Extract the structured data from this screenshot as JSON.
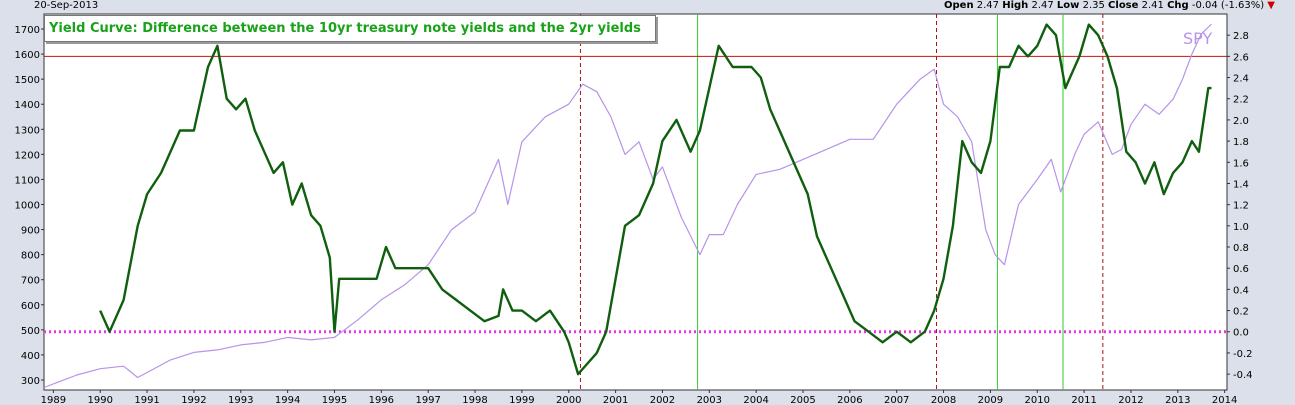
{
  "header": {
    "date": "20-Sep-2013",
    "open_label": "Open",
    "open": "2.47",
    "high_label": "High",
    "high": "2.47",
    "low_label": "Low",
    "low": "2.35",
    "close_label": "Close",
    "close": "2.41",
    "chg_label": "Chg",
    "chg": "-0.04 (-1.63%)",
    "chg_arrow": "▼"
  },
  "chart_data": {
    "type": "line",
    "title": "Yield Curve: Difference between the 10yr treasury note yields and the 2yr yields",
    "x_tick_labels": [
      "1989",
      "1990",
      "1991",
      "1992",
      "1993",
      "1994",
      "1995",
      "1996",
      "1997",
      "1998",
      "1999",
      "2000",
      "2001",
      "2002",
      "2003",
      "2004",
      "2005",
      "2006",
      "2007",
      "2008",
      "2009",
      "2010",
      "2011",
      "2012",
      "2013",
      "2014"
    ],
    "xlim": [
      1988.8,
      2014.05
    ],
    "left_axis": {
      "ylim": [
        260,
        1760
      ],
      "ticks": [
        300,
        400,
        500,
        600,
        700,
        800,
        900,
        1000,
        1100,
        1200,
        1300,
        1400,
        1500,
        1600,
        1700
      ]
    },
    "right_axis": {
      "ylim": [
        -0.55,
        3.0
      ],
      "ticks": [
        "-0.4",
        "-0.2",
        "0.0",
        "0.2",
        "0.4",
        "0.6",
        "0.8",
        "1.0",
        "1.2",
        "1.4",
        "1.6",
        "1.8",
        "2.0",
        "2.2",
        "2.4",
        "2.6",
        "2.8"
      ],
      "tick_values": [
        -0.4,
        -0.2,
        0.0,
        0.2,
        0.4,
        0.6,
        0.8,
        1.0,
        1.2,
        1.4,
        1.6,
        1.8,
        2.0,
        2.2,
        2.4,
        2.6,
        2.8
      ]
    },
    "grid": false,
    "series": [
      {
        "name": "",
        "axis": "right",
        "color": "#0f5f0f",
        "x": [
          1990.0,
          1990.2,
          1990.5,
          1990.8,
          1991.0,
          1991.3,
          1991.7,
          1992.0,
          1992.3,
          1992.5,
          1992.7,
          1992.9,
          1993.1,
          1993.3,
          1993.5,
          1993.7,
          1993.9,
          1994.1,
          1994.3,
          1994.5,
          1994.7,
          1994.9,
          1995.0,
          1995.1,
          1995.3,
          1995.6,
          1995.9,
          1996.1,
          1996.3,
          1996.5,
          1996.8,
          1997.0,
          1997.3,
          1997.6,
          1997.9,
          1998.2,
          1998.5,
          1998.6,
          1998.8,
          1999.0,
          1999.3,
          1999.6,
          1999.9,
          2000.0,
          2000.2,
          2000.4,
          2000.6,
          2000.8,
          2001.0,
          2001.2,
          2001.5,
          2001.8,
          2002.0,
          2002.3,
          2002.6,
          2002.8,
          2003.0,
          2003.2,
          2003.5,
          2003.7,
          2003.9,
          2004.1,
          2004.3,
          2004.6,
          2004.9,
          2005.1,
          2005.3,
          2005.6,
          2005.9,
          2006.1,
          2006.4,
          2006.7,
          2007.0,
          2007.3,
          2007.6,
          2007.8,
          2008.0,
          2008.2,
          2008.4,
          2008.6,
          2008.8,
          2009.0,
          2009.2,
          2009.4,
          2009.6,
          2009.8,
          2010.0,
          2010.2,
          2010.4,
          2010.6,
          2010.7,
          2010.9,
          2011.1,
          2011.3,
          2011.5,
          2011.7,
          2011.9,
          2012.1,
          2012.3,
          2012.5,
          2012.7,
          2012.9,
          2013.1,
          2013.3,
          2013.45,
          2013.55,
          2013.65,
          2013.72
        ],
        "y": [
          0.2,
          0.0,
          0.3,
          1.0,
          1.3,
          1.5,
          1.9,
          1.9,
          2.5,
          2.7,
          2.2,
          2.1,
          2.2,
          1.9,
          1.7,
          1.5,
          1.6,
          1.2,
          1.4,
          1.1,
          1.0,
          0.7,
          0.0,
          0.5,
          0.5,
          0.5,
          0.5,
          0.8,
          0.6,
          0.6,
          0.6,
          0.6,
          0.4,
          0.3,
          0.2,
          0.1,
          0.15,
          0.4,
          0.2,
          0.2,
          0.1,
          0.2,
          0.0,
          -0.1,
          -0.4,
          -0.3,
          -0.2,
          0.0,
          0.5,
          1.0,
          1.1,
          1.4,
          1.8,
          2.0,
          1.7,
          1.9,
          2.3,
          2.7,
          2.5,
          2.5,
          2.5,
          2.4,
          2.1,
          1.8,
          1.5,
          1.3,
          0.9,
          0.6,
          0.3,
          0.1,
          0.0,
          -0.1,
          0.0,
          -0.1,
          0.0,
          0.2,
          0.5,
          1.0,
          1.8,
          1.6,
          1.5,
          1.8,
          2.5,
          2.5,
          2.7,
          2.6,
          2.7,
          2.9,
          2.8,
          2.3,
          2.4,
          2.6,
          2.9,
          2.8,
          2.6,
          2.3,
          1.7,
          1.6,
          1.4,
          1.6,
          1.3,
          1.5,
          1.6,
          1.8,
          1.7,
          2.0,
          2.3,
          2.3
        ]
      },
      {
        "name": "SPY",
        "axis": "left",
        "color": "#b793ea",
        "x": [
          1988.8,
          1989.5,
          1990.0,
          1990.5,
          1990.8,
          1991.0,
          1991.5,
          1992.0,
          1992.5,
          1993.0,
          1993.5,
          1994.0,
          1994.5,
          1995.0,
          1995.5,
          1996.0,
          1996.5,
          1997.0,
          1997.5,
          1998.0,
          1998.5,
          1998.7,
          1999.0,
          1999.5,
          2000.0,
          2000.3,
          2000.6,
          2000.9,
          2001.2,
          2001.5,
          2001.8,
          2002.0,
          2002.4,
          2002.8,
          2003.0,
          2003.3,
          2003.6,
          2004.0,
          2004.5,
          2005.0,
          2005.5,
          2006.0,
          2006.5,
          2007.0,
          2007.5,
          2007.8,
          2008.0,
          2008.3,
          2008.6,
          2008.9,
          2009.1,
          2009.3,
          2009.6,
          2010.0,
          2010.3,
          2010.5,
          2010.8,
          2011.0,
          2011.3,
          2011.6,
          2011.8,
          2012.0,
          2012.3,
          2012.6,
          2012.9,
          2013.1,
          2013.3,
          2013.5,
          2013.72
        ],
        "y": [
          270,
          320,
          345,
          355,
          310,
          330,
          380,
          410,
          420,
          440,
          450,
          470,
          460,
          470,
          540,
          620,
          680,
          760,
          900,
          970,
          1180,
          1000,
          1250,
          1350,
          1400,
          1480,
          1450,
          1350,
          1200,
          1250,
          1100,
          1150,
          950,
          800,
          880,
          880,
          1000,
          1120,
          1140,
          1180,
          1220,
          1260,
          1260,
          1400,
          1500,
          1540,
          1400,
          1350,
          1250,
          900,
          800,
          760,
          1000,
          1100,
          1180,
          1050,
          1200,
          1280,
          1330,
          1200,
          1220,
          1320,
          1400,
          1360,
          1420,
          1500,
          1600,
          1680,
          1720
        ]
      }
    ],
    "horizontal_lines": [
      {
        "axis": "right",
        "value": 2.6,
        "color": "#cc1111",
        "style": "solid"
      },
      {
        "axis": "right",
        "value": 0.0,
        "color": "#ee33ee",
        "style": "dotted"
      }
    ],
    "vertical_lines": [
      {
        "x": 2000.25,
        "color": "#aa1111",
        "style": "dashed"
      },
      {
        "x": 2007.85,
        "color": "#aa1111",
        "style": "dashed"
      },
      {
        "x": 2011.4,
        "color": "#aa1111",
        "style": "dashed"
      },
      {
        "x": 2002.75,
        "color": "#33cc33",
        "style": "solid"
      },
      {
        "x": 2009.15,
        "color": "#33cc33",
        "style": "solid"
      },
      {
        "x": 2010.55,
        "color": "#33cc33",
        "style": "solid"
      }
    ]
  }
}
